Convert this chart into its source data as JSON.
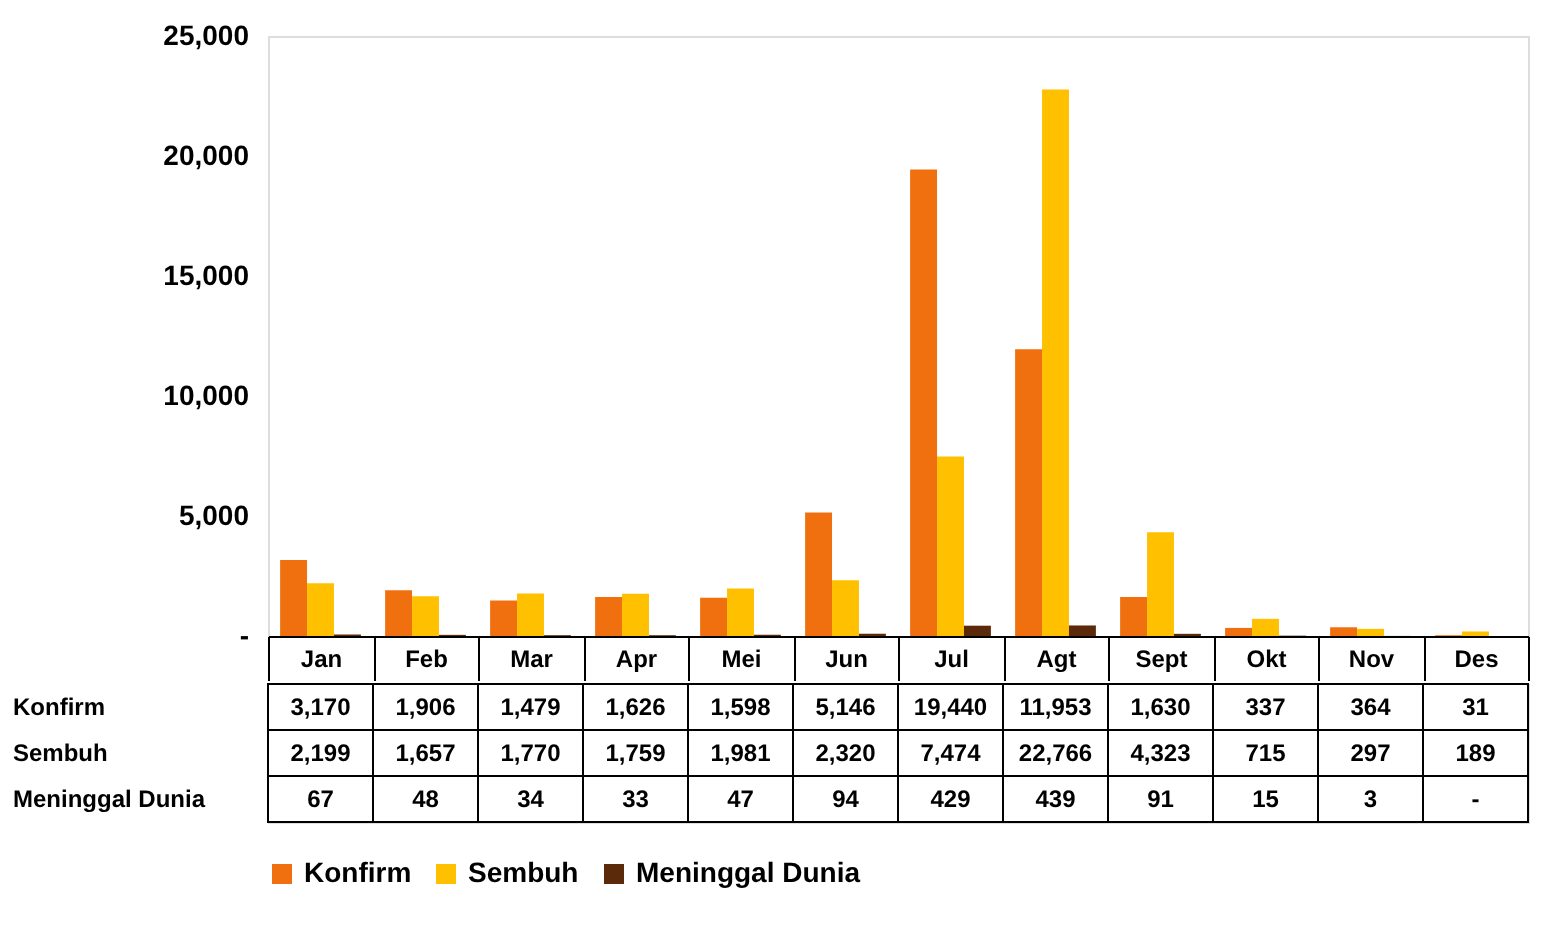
{
  "chart_data": {
    "type": "bar",
    "categories": [
      "Jan",
      "Feb",
      "Mar",
      "Apr",
      "Mei",
      "Jun",
      "Jul",
      "Agt",
      "Sept",
      "Okt",
      "Nov",
      "Des"
    ],
    "series": [
      {
        "name": "Konfirm",
        "color": "#f07010",
        "values": [
          3170,
          1906,
          1479,
          1626,
          1598,
          5146,
          19440,
          11953,
          1630,
          337,
          364,
          31
        ],
        "value_labels": [
          "3,170",
          "1,906",
          "1,479",
          "1,626",
          "1,598",
          "5,146",
          "19,440",
          "11,953",
          "1,630",
          "337",
          "364",
          "31"
        ]
      },
      {
        "name": "Sembuh",
        "color": "#ffc000",
        "values": [
          2199,
          1657,
          1770,
          1759,
          1981,
          2320,
          7474,
          22766,
          4323,
          715,
          297,
          189
        ],
        "value_labels": [
          "2,199",
          "1,657",
          "1,770",
          "1,759",
          "1,981",
          "2,320",
          "7,474",
          "22,766",
          "4,323",
          "715",
          "297",
          "189"
        ]
      },
      {
        "name": "Meninggal Dunia",
        "color": "#5a2a0a",
        "values": [
          67,
          48,
          34,
          33,
          47,
          94,
          429,
          439,
          91,
          15,
          3,
          0
        ],
        "value_labels": [
          "67",
          "48",
          "34",
          "33",
          "47",
          "94",
          "429",
          "439",
          "91",
          "15",
          "3",
          "-"
        ]
      }
    ],
    "ylim": [
      0,
      25000
    ],
    "yticks": [
      {
        "value": 0,
        "label": "-"
      },
      {
        "value": 5000,
        "label": "5,000"
      },
      {
        "value": 10000,
        "label": "10,000"
      },
      {
        "value": 15000,
        "label": "15,000"
      },
      {
        "value": 20000,
        "label": "20,000"
      },
      {
        "value": 25000,
        "label": "25,000"
      }
    ],
    "grid": false,
    "legend": "bottom"
  }
}
